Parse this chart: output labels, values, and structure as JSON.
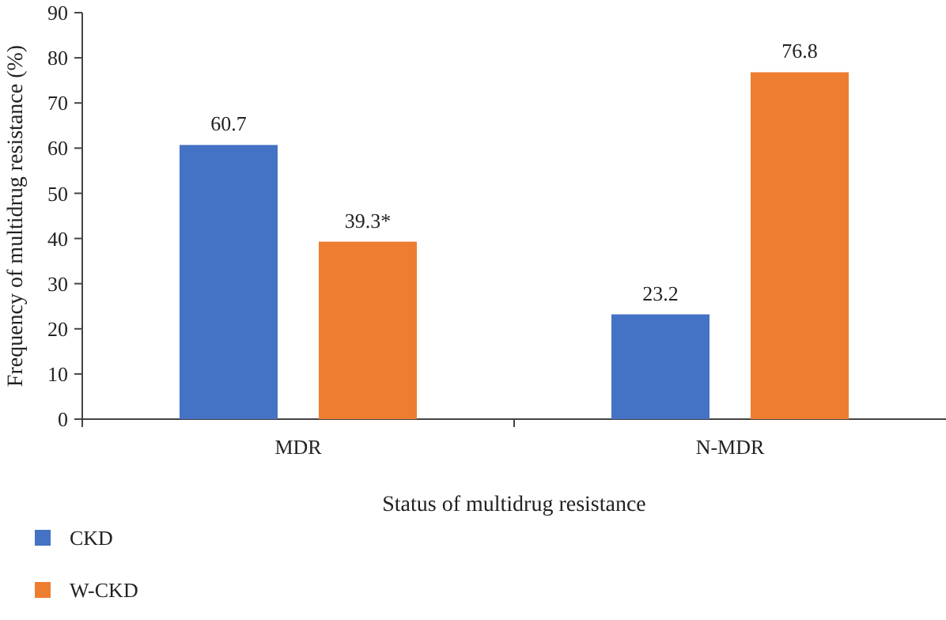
{
  "chart_data": {
    "type": "bar",
    "xlabel": "Status of multidrug resistance",
    "ylabel": "Frequency of multidrug resistance (%)",
    "categories": [
      "MDR",
      "N-MDR"
    ],
    "series": [
      {
        "name": "CKD",
        "color": "#4472c4",
        "values": [
          60.7,
          23.2
        ],
        "value_labels": [
          "60.7",
          "23.2"
        ]
      },
      {
        "name": "W-CKD",
        "color": "#ed7d31",
        "values": [
          39.3,
          76.8
        ],
        "value_labels": [
          "39.3*",
          "76.8"
        ]
      }
    ],
    "ylim": [
      0,
      90
    ],
    "yticks": [
      0,
      10,
      20,
      30,
      40,
      50,
      60,
      70,
      80,
      90
    ],
    "grid": false,
    "legend": "bottom left"
  }
}
